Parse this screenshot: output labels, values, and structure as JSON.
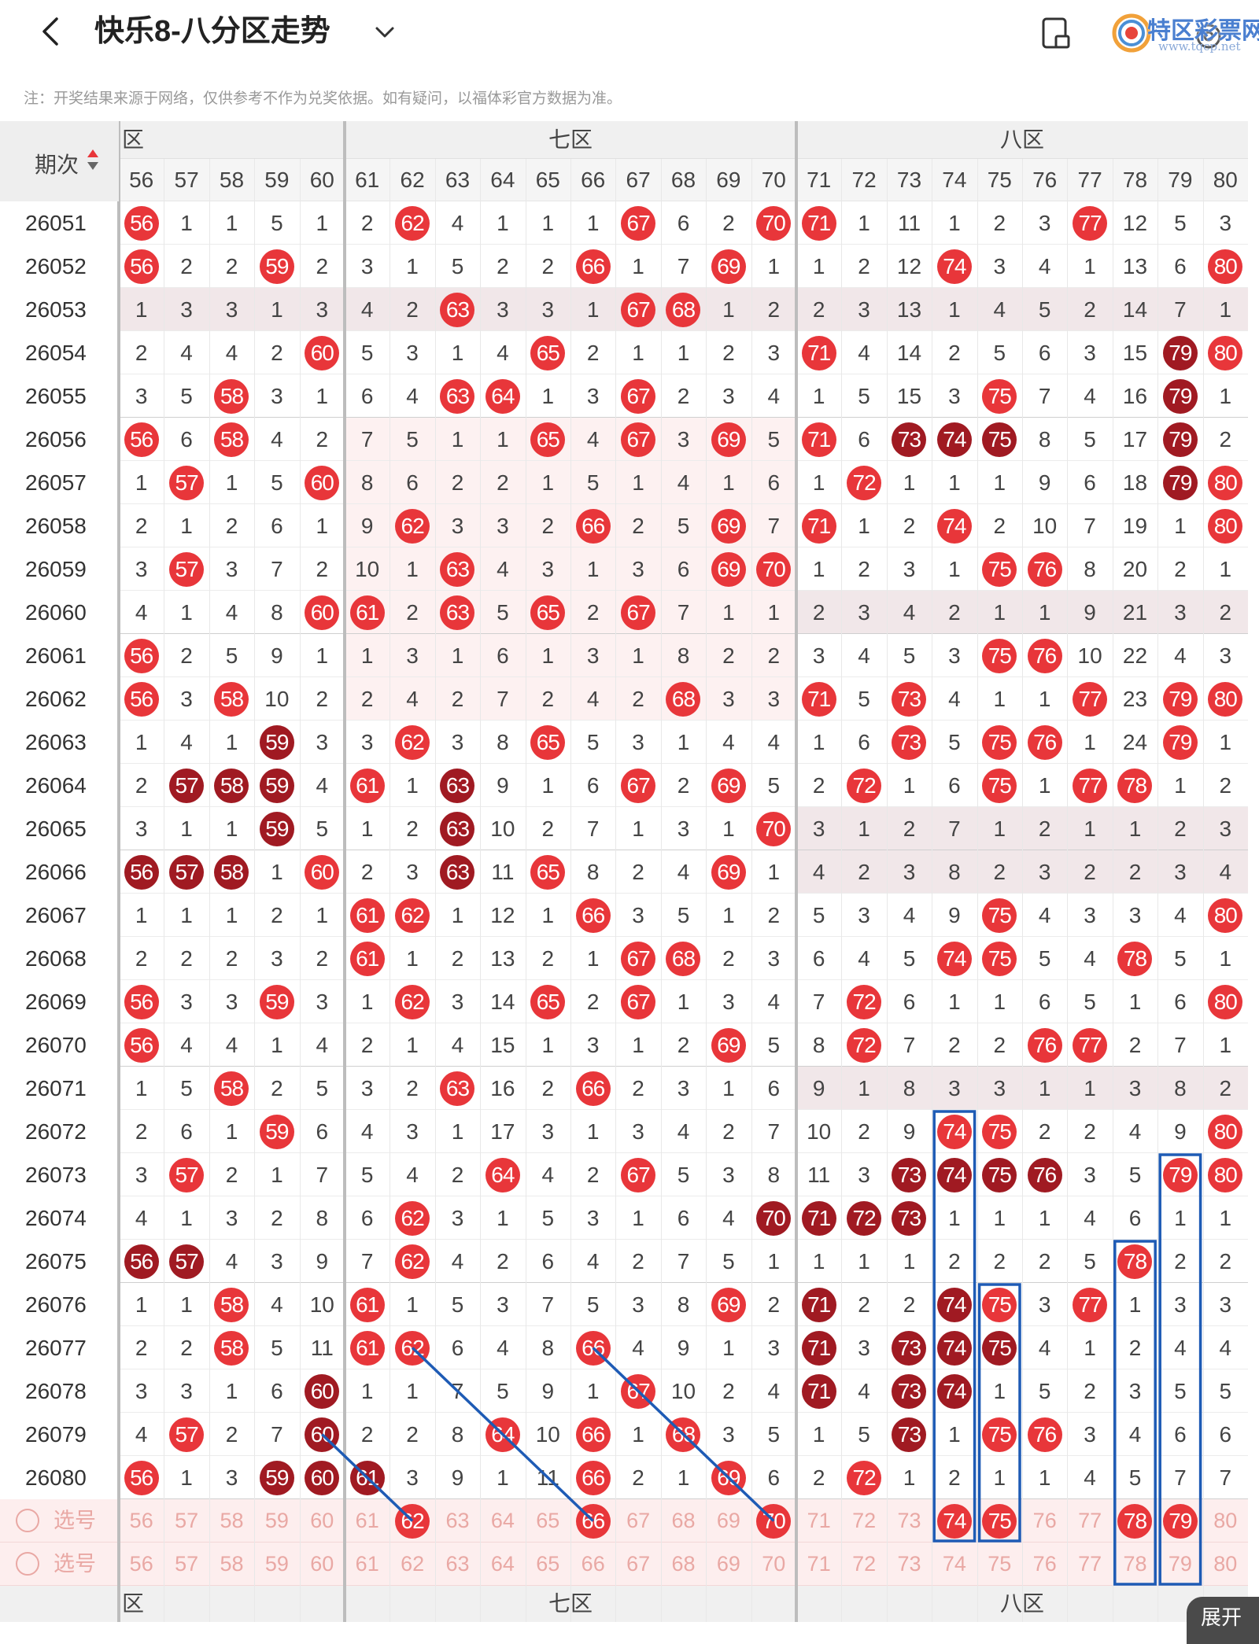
{
  "header": {
    "title": "快乐8-八分区走势"
  },
  "note": "注：开奖结果来源于网络，仅供参考不作为兑奖依据。如有疑问，以福体彩官方数据为准。",
  "watermark": {
    "line1": "特区彩票网",
    "line2": "www.tqcp.net"
  },
  "table": {
    "issue_header": "期次",
    "zones": [
      {
        "label": "六区",
        "cut": "区"
      },
      {
        "label": "七区"
      },
      {
        "label": "八区"
      }
    ],
    "cols": [
      56,
      57,
      58,
      59,
      60,
      61,
      62,
      63,
      64,
      65,
      66,
      67,
      68,
      69,
      70,
      71,
      72,
      73,
      74,
      75,
      76,
      77,
      78,
      79,
      80
    ],
    "rows": [
      {
        "issue": "26051",
        "vals": [
          "r",
          "1",
          "1",
          "5",
          "1",
          "2",
          "r",
          "4",
          "1",
          "1",
          "1",
          "r",
          "6",
          "2",
          "r",
          "r",
          "1",
          "11",
          "1",
          "2",
          "3",
          "r",
          "12",
          "5",
          "3"
        ]
      },
      {
        "issue": "26052",
        "vals": [
          "r",
          "2",
          "2",
          "r",
          "2",
          "3",
          "1",
          "5",
          "2",
          "2",
          "r",
          "1",
          "7",
          "r",
          "1",
          "1",
          "2",
          "12",
          "r",
          "3",
          "4",
          "1",
          "13",
          "6",
          "r"
        ]
      },
      {
        "issue": "26053",
        "vals": [
          "1",
          "3",
          "3",
          "1",
          "3",
          "4",
          "2",
          "r",
          "3",
          "3",
          "1",
          "r",
          "r",
          "1",
          "2",
          "2",
          "3",
          "13",
          "1",
          "4",
          "5",
          "2",
          "14",
          "7",
          "1"
        ]
      },
      {
        "issue": "26054",
        "vals": [
          "2",
          "4",
          "4",
          "2",
          "r",
          "5",
          "3",
          "1",
          "4",
          "r",
          "2",
          "1",
          "1",
          "2",
          "3",
          "r",
          "4",
          "14",
          "2",
          "5",
          "6",
          "3",
          "15",
          "d",
          "r"
        ]
      },
      {
        "issue": "26055",
        "vals": [
          "3",
          "5",
          "r",
          "3",
          "1",
          "6",
          "4",
          "r",
          "r",
          "1",
          "3",
          "r",
          "2",
          "3",
          "4",
          "1",
          "5",
          "15",
          "3",
          "r",
          "7",
          "4",
          "16",
          "d",
          "1"
        ]
      },
      {
        "issue": "26056",
        "vals": [
          "r",
          "6",
          "r",
          "4",
          "2",
          "7",
          "5",
          "1",
          "1",
          "r",
          "4",
          "r",
          "3",
          "r",
          "5",
          "r",
          "6",
          "d",
          "d",
          "d",
          "8",
          "5",
          "17",
          "d",
          "2"
        ]
      },
      {
        "issue": "26057",
        "vals": [
          "1",
          "r",
          "1",
          "5",
          "r",
          "8",
          "6",
          "2",
          "2",
          "1",
          "5",
          "1",
          "4",
          "1",
          "6",
          "1",
          "r",
          "1",
          "1",
          "1",
          "9",
          "6",
          "18",
          "d",
          "r"
        ]
      },
      {
        "issue": "26058",
        "vals": [
          "2",
          "1",
          "2",
          "6",
          "1",
          "9",
          "r",
          "3",
          "3",
          "2",
          "r",
          "2",
          "5",
          "r",
          "7",
          "r",
          "1",
          "2",
          "r",
          "2",
          "10",
          "7",
          "19",
          "1",
          "r"
        ]
      },
      {
        "issue": "26059",
        "vals": [
          "3",
          "r",
          "3",
          "7",
          "2",
          "10",
          "1",
          "r",
          "4",
          "3",
          "1",
          "3",
          "6",
          "r",
          "r",
          "1",
          "2",
          "3",
          "1",
          "r",
          "r",
          "8",
          "20",
          "2",
          "1"
        ]
      },
      {
        "issue": "26060",
        "vals": [
          "4",
          "1",
          "4",
          "8",
          "r",
          "r",
          "2",
          "r",
          "5",
          "r",
          "2",
          "r",
          "7",
          "1",
          "1",
          "2",
          "3",
          "4",
          "2",
          "1",
          "1",
          "9",
          "21",
          "3",
          "2"
        ]
      },
      {
        "issue": "26061",
        "vals": [
          "r",
          "2",
          "5",
          "9",
          "1",
          "1",
          "3",
          "1",
          "6",
          "1",
          "3",
          "1",
          "8",
          "2",
          "2",
          "3",
          "4",
          "5",
          "3",
          "r",
          "r",
          "10",
          "22",
          "4",
          "3"
        ]
      },
      {
        "issue": "26062",
        "vals": [
          "r",
          "3",
          "r",
          "10",
          "2",
          "2",
          "4",
          "2",
          "7",
          "2",
          "4",
          "2",
          "r",
          "3",
          "3",
          "r",
          "5",
          "r",
          "4",
          "1",
          "1",
          "r",
          "23",
          "r",
          "r"
        ]
      },
      {
        "issue": "26063",
        "vals": [
          "1",
          "4",
          "1",
          "d",
          "3",
          "3",
          "r",
          "3",
          "8",
          "r",
          "5",
          "3",
          "1",
          "4",
          "4",
          "1",
          "6",
          "r",
          "5",
          "r",
          "r",
          "1",
          "24",
          "r",
          "1"
        ]
      },
      {
        "issue": "26064",
        "vals": [
          "2",
          "d",
          "d",
          "d",
          "4",
          "r",
          "1",
          "d",
          "9",
          "1",
          "6",
          "r",
          "2",
          "r",
          "5",
          "2",
          "r",
          "1",
          "6",
          "r",
          "1",
          "r",
          "r",
          "1",
          "2"
        ]
      },
      {
        "issue": "26065",
        "vals": [
          "3",
          "1",
          "1",
          "d",
          "5",
          "1",
          "2",
          "d",
          "10",
          "2",
          "7",
          "1",
          "3",
          "1",
          "r",
          "3",
          "1",
          "2",
          "7",
          "1",
          "2",
          "1",
          "1",
          "2",
          "3"
        ]
      },
      {
        "issue": "26066",
        "vals": [
          "d",
          "d",
          "d",
          "1",
          "r",
          "2",
          "3",
          "d",
          "11",
          "r",
          "8",
          "2",
          "4",
          "r",
          "1",
          "4",
          "2",
          "3",
          "8",
          "2",
          "3",
          "2",
          "2",
          "3",
          "4"
        ]
      },
      {
        "issue": "26067",
        "vals": [
          "1",
          "1",
          "1",
          "2",
          "1",
          "r",
          "r",
          "1",
          "12",
          "1",
          "r",
          "3",
          "5",
          "1",
          "2",
          "5",
          "3",
          "4",
          "9",
          "r",
          "4",
          "3",
          "3",
          "4",
          "r"
        ]
      },
      {
        "issue": "26068",
        "vals": [
          "2",
          "2",
          "2",
          "3",
          "2",
          "r",
          "1",
          "2",
          "13",
          "2",
          "1",
          "r",
          "r",
          "2",
          "3",
          "6",
          "4",
          "5",
          "r",
          "r",
          "5",
          "4",
          "r",
          "5",
          "1"
        ]
      },
      {
        "issue": "26069",
        "vals": [
          "r",
          "3",
          "3",
          "r",
          "3",
          "1",
          "r",
          "3",
          "14",
          "r",
          "2",
          "r",
          "1",
          "3",
          "4",
          "7",
          "r",
          "6",
          "1",
          "1",
          "6",
          "5",
          "1",
          "6",
          "r"
        ]
      },
      {
        "issue": "26070",
        "vals": [
          "r",
          "4",
          "4",
          "1",
          "4",
          "2",
          "1",
          "4",
          "15",
          "1",
          "3",
          "1",
          "2",
          "r",
          "5",
          "8",
          "r",
          "7",
          "2",
          "2",
          "r",
          "r",
          "2",
          "7",
          "1"
        ]
      },
      {
        "issue": "26071",
        "vals": [
          "1",
          "5",
          "r",
          "2",
          "5",
          "3",
          "2",
          "r",
          "16",
          "2",
          "r",
          "2",
          "3",
          "1",
          "6",
          "9",
          "1",
          "8",
          "3",
          "3",
          "1",
          "1",
          "3",
          "8",
          "2"
        ]
      },
      {
        "issue": "26072",
        "vals": [
          "2",
          "6",
          "1",
          "r",
          "6",
          "4",
          "3",
          "1",
          "17",
          "3",
          "1",
          "3",
          "4",
          "2",
          "7",
          "10",
          "2",
          "9",
          "r",
          "r",
          "2",
          "2",
          "4",
          "9",
          "r"
        ]
      },
      {
        "issue": "26073",
        "vals": [
          "3",
          "r",
          "2",
          "1",
          "7",
          "5",
          "4",
          "2",
          "r",
          "4",
          "2",
          "r",
          "5",
          "3",
          "8",
          "11",
          "3",
          "d",
          "d",
          "d",
          "d",
          "3",
          "5",
          "r",
          "r"
        ]
      },
      {
        "issue": "26074",
        "vals": [
          "4",
          "1",
          "3",
          "2",
          "8",
          "6",
          "r",
          "3",
          "1",
          "5",
          "3",
          "1",
          "6",
          "4",
          "d",
          "d",
          "d",
          "d",
          "1",
          "1",
          "1",
          "4",
          "6",
          "1",
          "1"
        ]
      },
      {
        "issue": "26075",
        "vals": [
          "d",
          "d",
          "4",
          "3",
          "9",
          "7",
          "r",
          "4",
          "2",
          "6",
          "4",
          "2",
          "7",
          "5",
          "1",
          "1",
          "1",
          "1",
          "2",
          "2",
          "2",
          "5",
          "r",
          "2",
          "2"
        ]
      },
      {
        "issue": "26076",
        "vals": [
          "1",
          "1",
          "r",
          "4",
          "10",
          "r",
          "1",
          "5",
          "3",
          "7",
          "5",
          "3",
          "8",
          "r",
          "2",
          "d",
          "2",
          "2",
          "d",
          "r",
          "3",
          "r",
          "1",
          "3",
          "3"
        ]
      },
      {
        "issue": "26077",
        "vals": [
          "2",
          "2",
          "r",
          "5",
          "11",
          "r",
          "r",
          "6",
          "4",
          "8",
          "r",
          "4",
          "9",
          "1",
          "3",
          "d",
          "3",
          "d",
          "d",
          "d",
          "4",
          "1",
          "2",
          "4",
          "4"
        ]
      },
      {
        "issue": "26078",
        "vals": [
          "3",
          "3",
          "1",
          "6",
          "d",
          "1",
          "1",
          "7",
          "5",
          "9",
          "1",
          "r",
          "10",
          "2",
          "4",
          "d",
          "4",
          "d",
          "d",
          "1",
          "5",
          "2",
          "3",
          "5",
          "5"
        ]
      },
      {
        "issue": "26079",
        "vals": [
          "4",
          "r",
          "2",
          "7",
          "d",
          "2",
          "2",
          "8",
          "r",
          "10",
          "r",
          "1",
          "r",
          "3",
          "5",
          "1",
          "5",
          "d",
          "1",
          "r",
          "r",
          "3",
          "4",
          "6",
          "6"
        ]
      },
      {
        "issue": "26080",
        "vals": [
          "r",
          "1",
          "3",
          "d",
          "d",
          "d",
          "3",
          "9",
          "1",
          "11",
          "r",
          "2",
          "1",
          "r",
          "6",
          "2",
          "r",
          "1",
          "2",
          "1",
          "1",
          "4",
          "5",
          "7",
          "7"
        ]
      }
    ],
    "select_label": "选号",
    "select1_balls": [
      62,
      66,
      70,
      74,
      75,
      78,
      79
    ],
    "expand": "展开"
  }
}
